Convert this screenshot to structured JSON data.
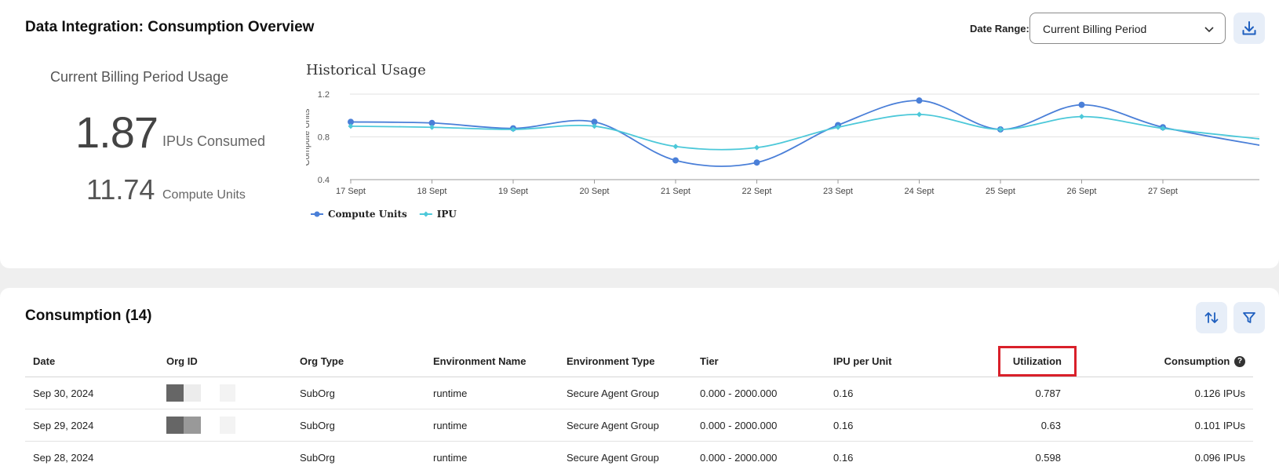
{
  "header": {
    "title": "Data Integration: Consumption Overview",
    "date_range_label": "Date Range:",
    "date_range_value": "Current Billing Period"
  },
  "summary": {
    "heading": "Current Billing Period Usage",
    "ipus_value": "1.87",
    "ipus_unit": "IPUs Consumed",
    "cu_value": "11.74",
    "cu_unit": "Compute Units"
  },
  "chart_data": {
    "type": "line",
    "title": "Historical Usage",
    "ylabel": "Compute Units",
    "xlabel": "",
    "categories": [
      "17 Sept",
      "18 Sept",
      "19 Sept",
      "20 Sept",
      "21 Sept",
      "22 Sept",
      "23 Sept",
      "24 Sept",
      "25 Sept",
      "26 Sept",
      "27 Sept"
    ],
    "series": [
      {
        "name": "Compute Units",
        "color": "#4a7fd8",
        "marker": "circle",
        "values": [
          0.94,
          0.93,
          0.88,
          0.94,
          0.58,
          0.56,
          0.91,
          1.14,
          0.87,
          1.1,
          0.89
        ]
      },
      {
        "name": "IPU",
        "color": "#4cc8d9",
        "marker": "diamond",
        "values": [
          0.9,
          0.89,
          0.87,
          0.9,
          0.71,
          0.7,
          0.89,
          1.01,
          0.87,
          0.99,
          0.88
        ]
      }
    ],
    "yticks": [
      "1.2",
      "0.8",
      "0.4"
    ],
    "ylim": [
      0.4,
      1.2
    ],
    "grid": true,
    "legend": "bottom-left"
  },
  "consumption": {
    "title": "Consumption (14)",
    "columns": [
      "Date",
      "Org ID",
      "Org Type",
      "Environment Name",
      "Environment Type",
      "Tier",
      "IPU per Unit",
      "Utilization",
      "Consumption"
    ],
    "rows": [
      {
        "date": "Sep 30, 2024",
        "org_type": "SubOrg",
        "env_name": "runtime",
        "env_type": "Secure Agent Group",
        "tier": "0.000 - 2000.000",
        "ipu_per_unit": "0.16",
        "utilization": "0.787",
        "consumption": "0.126 IPUs"
      },
      {
        "date": "Sep 29, 2024",
        "org_type": "SubOrg",
        "env_name": "runtime",
        "env_type": "Secure Agent Group",
        "tier": "0.000 - 2000.000",
        "ipu_per_unit": "0.16",
        "utilization": "0.63",
        "consumption": "0.101 IPUs"
      },
      {
        "date": "Sep 28, 2024",
        "org_type": "SubOrg",
        "env_name": "runtime",
        "env_type": "Secure Agent Group",
        "tier": "0.000 - 2000.000",
        "ipu_per_unit": "0.16",
        "utilization": "0.598",
        "consumption": "0.096 IPUs"
      }
    ]
  },
  "icons": {
    "download": "download-icon",
    "sort": "sort-icon",
    "filter": "filter-icon",
    "chevron": "chevron-down-icon",
    "help": "help-icon"
  },
  "colors": {
    "accent": "#1f5fbf",
    "highlight": "#d9202a",
    "button_bg": "#e7eef8"
  }
}
